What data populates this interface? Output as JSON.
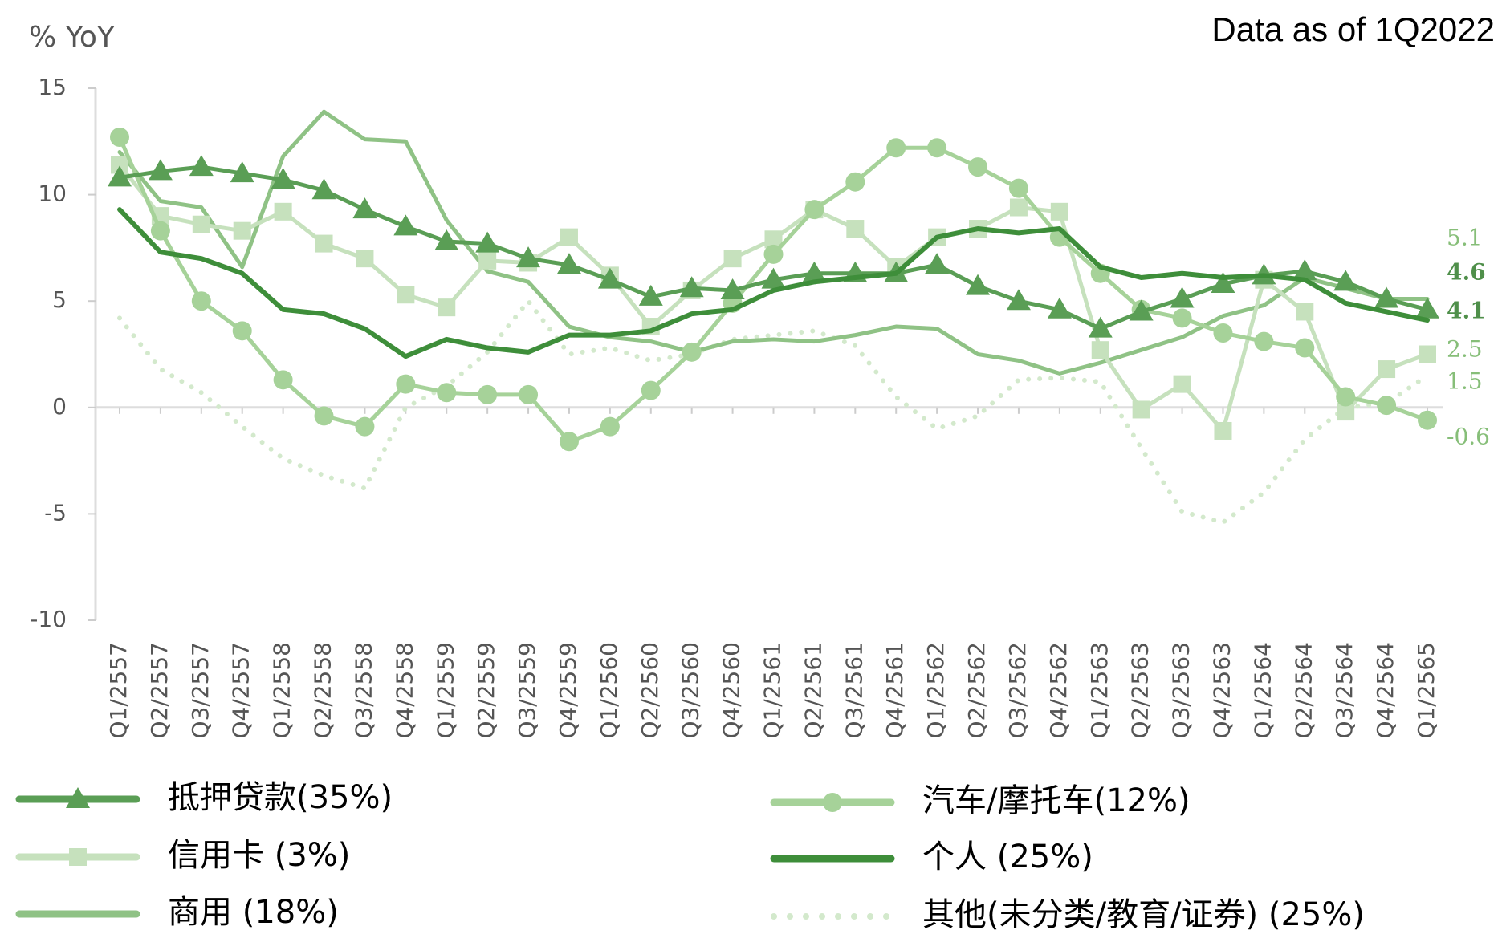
{
  "chart_data": {
    "type": "line",
    "subtitle": "Data as of 1Q2022",
    "y_axis_label": "% YoY",
    "categories": [
      "Q1/2557",
      "Q2/2557",
      "Q3/2557",
      "Q4/2557",
      "Q1/2558",
      "Q2/2558",
      "Q3/2558",
      "Q4/2558",
      "Q1/2559",
      "Q2/2559",
      "Q3/2559",
      "Q4/2559",
      "Q1/2560",
      "Q2/2560",
      "Q3/2560",
      "Q4/2560",
      "Q1/2561",
      "Q2/2561",
      "Q3/2561",
      "Q4/2561",
      "Q1/2562",
      "Q2/2562",
      "Q3/2562",
      "Q4/2562",
      "Q1/2563",
      "Q2/2563",
      "Q3/2563",
      "Q4/2563",
      "Q1/2564",
      "Q2/2564",
      "Q3/2564",
      "Q4/2564",
      "Q1/2565"
    ],
    "ylim": [
      -10,
      15
    ],
    "yticks": [
      15,
      10,
      5,
      0,
      -5,
      -10
    ],
    "series": [
      {
        "name": "抵押贷款(35%)",
        "color": "#5a9e55",
        "marker": "triangle",
        "style": "solid",
        "end_label": "4.6",
        "values": [
          10.8,
          11.1,
          11.3,
          11.0,
          10.7,
          10.2,
          9.3,
          8.5,
          7.8,
          7.7,
          7.0,
          6.7,
          6.0,
          5.2,
          5.6,
          5.5,
          6.0,
          6.3,
          6.3,
          6.3,
          6.7,
          5.7,
          5.0,
          4.6,
          3.7,
          4.5,
          5.1,
          5.8,
          6.2,
          6.4,
          5.9,
          5.1,
          4.6
        ]
      },
      {
        "name": "汽车/摩托车(12%)",
        "color": "#a6d299",
        "marker": "circle",
        "style": "solid",
        "end_label": "-0.6",
        "values": [
          12.7,
          8.3,
          5.0,
          3.6,
          1.3,
          -0.4,
          -0.9,
          1.1,
          0.7,
          0.6,
          0.6,
          -1.6,
          -0.9,
          0.8,
          2.6,
          4.9,
          7.2,
          9.3,
          10.6,
          12.2,
          12.2,
          11.3,
          10.3,
          8.0,
          6.3,
          4.6,
          4.2,
          3.5,
          3.1,
          2.8,
          0.5,
          0.1,
          -0.6
        ]
      },
      {
        "name": "信用卡 (3%)",
        "color": "#c6e1bd",
        "marker": "square",
        "style": "solid",
        "end_label": "2.5",
        "values": [
          11.4,
          9.0,
          8.6,
          8.3,
          9.2,
          7.7,
          7.0,
          5.3,
          4.7,
          6.9,
          6.8,
          8.0,
          6.2,
          3.8,
          5.5,
          7.0,
          7.9,
          9.3,
          8.4,
          6.6,
          8.0,
          8.4,
          9.4,
          9.2,
          2.7,
          -0.1,
          1.1,
          -1.1,
          6.0,
          4.5,
          -0.2,
          1.8,
          2.5
        ]
      },
      {
        "name": "个人 (25%)",
        "color": "#3e8e3a",
        "marker": "none",
        "style": "solid",
        "end_label": "4.1",
        "values": [
          9.3,
          7.3,
          7.0,
          6.3,
          4.6,
          4.4,
          3.7,
          2.4,
          3.2,
          2.8,
          2.6,
          3.4,
          3.4,
          3.6,
          4.4,
          4.6,
          5.5,
          5.9,
          6.1,
          6.3,
          8.0,
          8.4,
          8.2,
          8.4,
          6.6,
          6.1,
          6.3,
          6.1,
          6.2,
          6.0,
          4.9,
          4.5,
          4.1
        ]
      },
      {
        "name": "商用 (18%)",
        "color": "#8fc285",
        "marker": "none",
        "style": "solid",
        "end_label": "5.1",
        "values": [
          12.0,
          9.7,
          9.4,
          6.6,
          11.8,
          13.9,
          12.6,
          12.5,
          8.8,
          6.4,
          5.9,
          3.8,
          3.3,
          3.1,
          2.6,
          3.1,
          3.2,
          3.1,
          3.4,
          3.8,
          3.7,
          2.5,
          2.2,
          1.6,
          2.1,
          2.7,
          3.3,
          4.3,
          4.8,
          6.1,
          5.6,
          5.1,
          5.1
        ]
      },
      {
        "name": "其他(未分类/教育/证券) (25%)",
        "color": "#d3e9cc",
        "marker": "none",
        "style": "dotted",
        "end_label": "1.5",
        "values": [
          4.2,
          1.8,
          0.7,
          -0.9,
          -2.4,
          -3.2,
          -3.8,
          0.0,
          1.0,
          2.6,
          5.0,
          2.5,
          2.8,
          2.2,
          2.5,
          3.2,
          3.4,
          3.6,
          2.9,
          0.5,
          -1.0,
          -0.4,
          1.3,
          1.4,
          1.2,
          -1.9,
          -4.9,
          -5.4,
          -4.0,
          -1.5,
          0.0,
          0.2,
          1.5
        ]
      }
    ]
  }
}
